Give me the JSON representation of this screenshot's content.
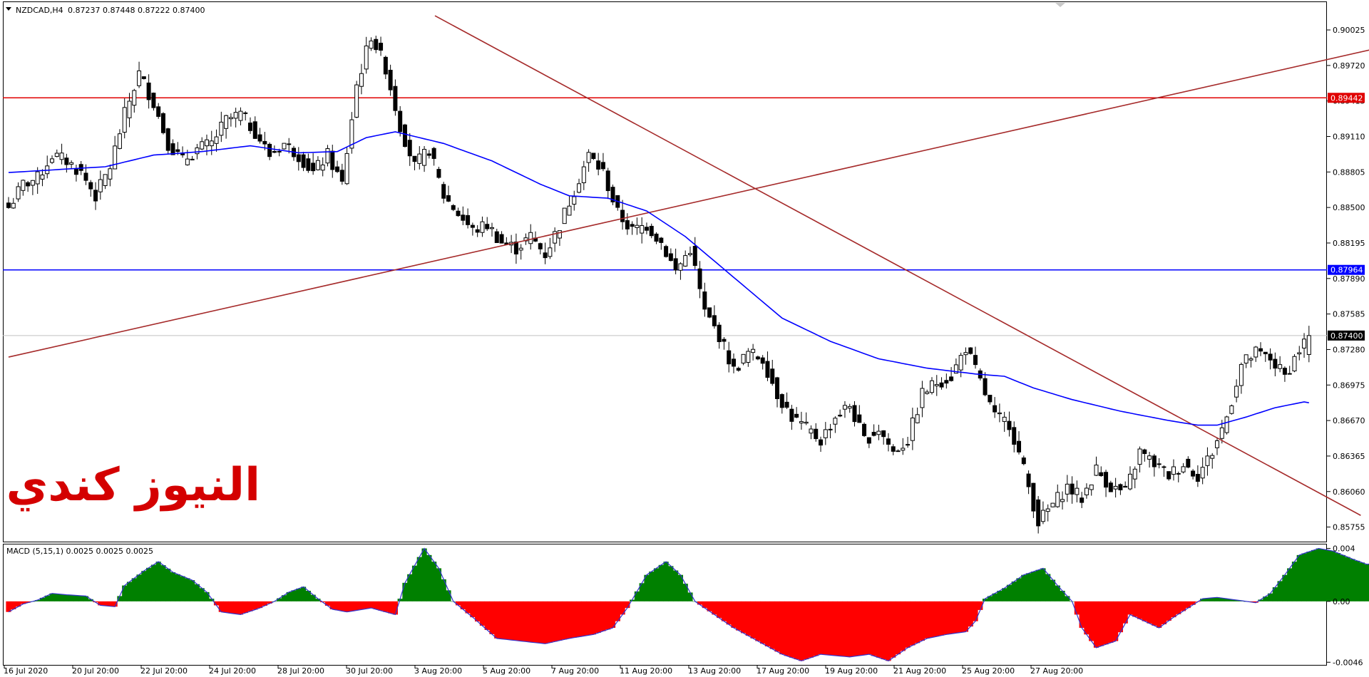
{
  "header": {
    "symbol": "NZDCAD,H4",
    "ohlc": "0.87237 0.87448 0.87222 0.87400"
  },
  "watermark": "النيوز كندي",
  "macd_label": "MACD (5,15,1) 0.0025 0.0025 0.0025",
  "colors": {
    "watermark": "#d40000",
    "ma": "#0000ff",
    "trendline": "#a52a2a",
    "red_level": "#e00000",
    "blue_level": "#0000ff",
    "macd_pos": "#008000",
    "macd_neg": "#ff0000",
    "macd_outline": "#3333cc"
  },
  "chart_data": {
    "type": "candlestick",
    "price_axis": {
      "min": 0.8563,
      "max": 0.9027,
      "ticks": [
        "0.90025",
        "0.89720",
        "0.89415",
        "0.89110",
        "0.88805",
        "0.88500",
        "0.88195",
        "0.87890",
        "0.87585",
        "0.87280",
        "0.86975",
        "0.86670",
        "0.86365",
        "0.86060",
        "0.85755"
      ]
    },
    "time_labels": [
      "16 Jul 2020",
      "20 Jul 20:00",
      "22 Jul 20:00",
      "24 Jul 20:00",
      "28 Jul 20:00",
      "30 Jul 20:00",
      "3 Aug 20:00",
      "5 Aug 20:00",
      "7 Aug 20:00",
      "11 Aug 20:00",
      "13 Aug 20:00",
      "17 Aug 20:00",
      "19 Aug 20:00",
      "21 Aug 20:00",
      "25 Aug 20:00",
      "27 Aug 20:00"
    ],
    "levels": [
      {
        "label": "0.89442",
        "value": 0.89442
      },
      {
        "label": "0.87964",
        "value": 0.87964
      },
      {
        "label": "0.87400",
        "value": 0.874
      }
    ],
    "close_anchors": [
      [
        0,
        0.885
      ],
      [
        3,
        0.887
      ],
      [
        6,
        0.8875
      ],
      [
        9,
        0.8895
      ],
      [
        12,
        0.889
      ],
      [
        15,
        0.888
      ],
      [
        18,
        0.886
      ],
      [
        21,
        0.8885
      ],
      [
        24,
        0.893
      ],
      [
        27,
        0.8965
      ],
      [
        30,
        0.894
      ],
      [
        33,
        0.8905
      ],
      [
        36,
        0.889
      ],
      [
        39,
        0.89
      ],
      [
        42,
        0.8905
      ],
      [
        45,
        0.8925
      ],
      [
        48,
        0.893
      ],
      [
        51,
        0.8915
      ],
      [
        54,
        0.8895
      ],
      [
        57,
        0.8905
      ],
      [
        60,
        0.8895
      ],
      [
        63,
        0.888
      ],
      [
        66,
        0.8895
      ],
      [
        69,
        0.887
      ],
      [
        72,
        0.8955
      ],
      [
        75,
        0.8998
      ],
      [
        78,
        0.897
      ],
      [
        81,
        0.892
      ],
      [
        84,
        0.8885
      ],
      [
        87,
        0.89
      ],
      [
        90,
        0.886
      ],
      [
        93,
        0.8845
      ],
      [
        96,
        0.883
      ],
      [
        99,
        0.8835
      ],
      [
        102,
        0.882
      ],
      [
        105,
        0.8815
      ],
      [
        108,
        0.8825
      ],
      [
        111,
        0.881
      ],
      [
        114,
        0.8835
      ],
      [
        117,
        0.8865
      ],
      [
        120,
        0.8895
      ],
      [
        123,
        0.888
      ],
      [
        126,
        0.8845
      ],
      [
        129,
        0.883
      ],
      [
        132,
        0.8835
      ],
      [
        135,
        0.882
      ],
      [
        138,
        0.8795
      ],
      [
        141,
        0.8815
      ],
      [
        144,
        0.876
      ],
      [
        147,
        0.874
      ],
      [
        150,
        0.871
      ],
      [
        153,
        0.8725
      ],
      [
        156,
        0.872
      ],
      [
        159,
        0.869
      ],
      [
        162,
        0.867
      ],
      [
        165,
        0.866
      ],
      [
        168,
        0.865
      ],
      [
        171,
        0.867
      ],
      [
        174,
        0.868
      ],
      [
        177,
        0.865
      ],
      [
        180,
        0.866
      ],
      [
        183,
        0.864
      ],
      [
        186,
        0.865
      ],
      [
        189,
        0.869
      ],
      [
        192,
        0.87
      ],
      [
        195,
        0.8705
      ],
      [
        198,
        0.873
      ],
      [
        201,
        0.87
      ],
      [
        204,
        0.867
      ],
      [
        207,
        0.8665
      ],
      [
        210,
        0.8625
      ],
      [
        213,
        0.858
      ],
      [
        216,
        0.8595
      ],
      [
        219,
        0.861
      ],
      [
        222,
        0.86
      ],
      [
        225,
        0.8625
      ],
      [
        228,
        0.861
      ],
      [
        231,
        0.8605
      ],
      [
        234,
        0.864
      ],
      [
        237,
        0.863
      ],
      [
        240,
        0.862
      ],
      [
        243,
        0.863
      ],
      [
        246,
        0.862
      ],
      [
        249,
        0.864
      ],
      [
        252,
        0.867
      ],
      [
        255,
        0.8715
      ],
      [
        258,
        0.8725
      ],
      [
        261,
        0.872
      ],
      [
        264,
        0.8705
      ],
      [
        267,
        0.8728
      ],
      [
        269,
        0.874
      ]
    ],
    "ma_anchors": [
      [
        0,
        0.888
      ],
      [
        20,
        0.8885
      ],
      [
        30,
        0.8895
      ],
      [
        40,
        0.8898
      ],
      [
        50,
        0.8903
      ],
      [
        60,
        0.8897
      ],
      [
        68,
        0.8898
      ],
      [
        74,
        0.891
      ],
      [
        80,
        0.8915
      ],
      [
        90,
        0.8905
      ],
      [
        100,
        0.889
      ],
      [
        110,
        0.887
      ],
      [
        116,
        0.886
      ],
      [
        124,
        0.8858
      ],
      [
        132,
        0.8847
      ],
      [
        140,
        0.8825
      ],
      [
        150,
        0.879
      ],
      [
        160,
        0.8755
      ],
      [
        170,
        0.8735
      ],
      [
        180,
        0.872
      ],
      [
        190,
        0.8712
      ],
      [
        200,
        0.8707
      ],
      [
        206,
        0.8705
      ],
      [
        212,
        0.8695
      ],
      [
        220,
        0.8685
      ],
      [
        230,
        0.8675
      ],
      [
        240,
        0.8667
      ],
      [
        246,
        0.8663
      ],
      [
        250,
        0.8663
      ],
      [
        256,
        0.867
      ],
      [
        262,
        0.8678
      ],
      [
        268,
        0.8683
      ]
    ],
    "trendlines": [
      {
        "name": "",
        "from": [
          0.0,
          0.87215
        ],
        "to": [
          293.4,
          0.89964
        ]
      },
      {
        "name": "",
        "from": [
          88.2,
          0.90147
        ],
        "to": [
          279.7,
          0.85855
        ]
      }
    ],
    "macd": {
      "label": "MACD (5,15,1) 0.0025 0.0025 0.0025",
      "y_range": [
        -0.0048,
        0.0043
      ],
      "ticks": [
        "0.004",
        "0.00",
        "-0.0046"
      ],
      "anchors": [
        [
          0,
          -0.0008
        ],
        [
          3,
          -0.0002
        ],
        [
          6,
          0.0001
        ],
        [
          9,
          0.0006
        ],
        [
          12,
          0.0005
        ],
        [
          16,
          0.0004
        ],
        [
          19,
          -0.0003
        ],
        [
          22,
          -0.0004
        ],
        [
          24,
          0.0012
        ],
        [
          28,
          0.0023
        ],
        [
          31,
          0.003
        ],
        [
          34,
          0.0022
        ],
        [
          38,
          0.0016
        ],
        [
          41,
          0.0007
        ],
        [
          44,
          -0.0008
        ],
        [
          48,
          -0.001
        ],
        [
          52,
          -0.0005
        ],
        [
          55,
          0.0
        ],
        [
          58,
          0.0007
        ],
        [
          61,
          0.0011
        ],
        [
          64,
          0.0002
        ],
        [
          67,
          -0.0006
        ],
        [
          70,
          -0.0008
        ],
        [
          75,
          -0.0005
        ],
        [
          80,
          -0.001
        ],
        [
          82,
          0.0014
        ],
        [
          86,
          0.004
        ],
        [
          89,
          0.0025
        ],
        [
          92,
          0.0
        ],
        [
          96,
          -0.0012
        ],
        [
          101,
          -0.0028
        ],
        [
          106,
          -0.003
        ],
        [
          111,
          -0.0032
        ],
        [
          116,
          -0.0028
        ],
        [
          121,
          -0.0025
        ],
        [
          125,
          -0.002
        ],
        [
          128,
          -0.0005
        ],
        [
          132,
          0.002
        ],
        [
          136,
          0.003
        ],
        [
          139,
          0.002
        ],
        [
          142,
          0.0
        ],
        [
          146,
          -0.001
        ],
        [
          150,
          -0.002
        ],
        [
          155,
          -0.003
        ],
        [
          160,
          -0.004
        ],
        [
          164,
          -0.0045
        ],
        [
          168,
          -0.004
        ],
        [
          174,
          -0.0042
        ],
        [
          178,
          -0.004
        ],
        [
          182,
          -0.0045
        ],
        [
          186,
          -0.0035
        ],
        [
          190,
          -0.0028
        ],
        [
          194,
          -0.0025
        ],
        [
          198,
          -0.0023
        ],
        [
          200,
          -0.0015
        ],
        [
          202,
          0.0002
        ],
        [
          206,
          0.001
        ],
        [
          210,
          0.002
        ],
        [
          214,
          0.0025
        ],
        [
          217,
          0.0012
        ],
        [
          220,
          0.0
        ],
        [
          222,
          -0.002
        ],
        [
          225,
          -0.0035
        ],
        [
          229,
          -0.003
        ],
        [
          232,
          -0.001
        ],
        [
          235,
          -0.0015
        ],
        [
          238,
          -0.002
        ],
        [
          241,
          -0.0012
        ],
        [
          244,
          -0.0005
        ],
        [
          247,
          0.0002
        ],
        [
          250,
          0.0003
        ],
        [
          254,
          0.0001
        ],
        [
          258,
          -0.0001
        ],
        [
          261,
          0.0006
        ],
        [
          264,
          0.002
        ],
        [
          267,
          0.0035
        ],
        [
          271,
          0.004
        ],
        [
          274,
          0.0038
        ],
        [
          278,
          0.0032
        ],
        [
          281,
          0.0028
        ],
        [
          283,
          0.0029
        ]
      ]
    }
  }
}
